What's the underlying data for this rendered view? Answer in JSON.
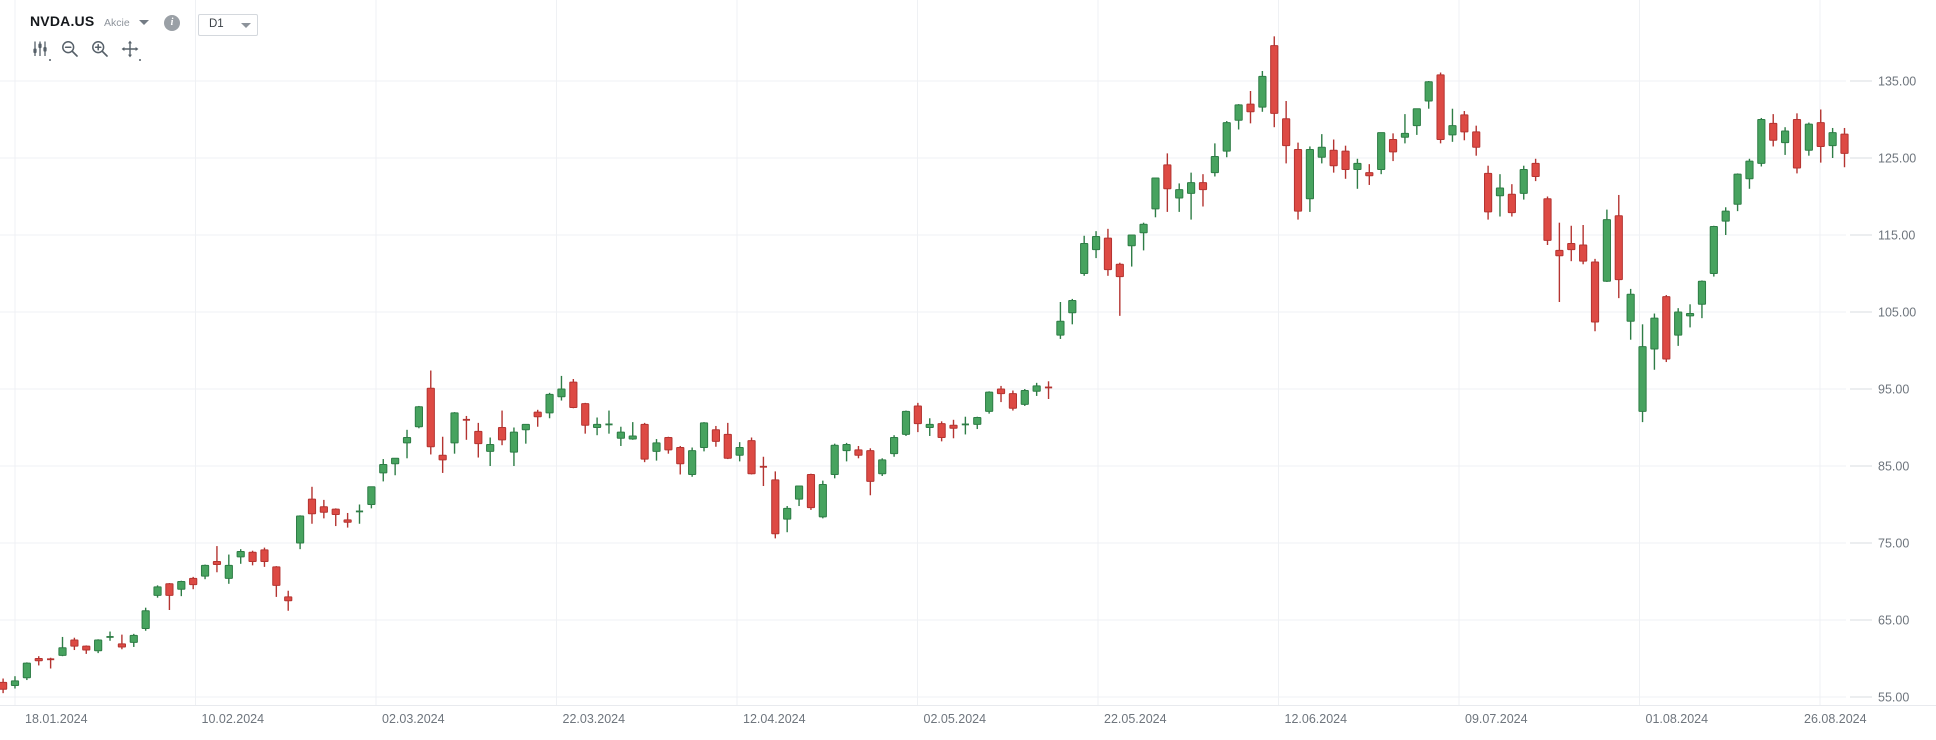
{
  "header": {
    "symbol": "NVDA.US",
    "instrument_type": "Akcie",
    "timeframe": "D1",
    "info_glyph": "i"
  },
  "toolbar": {
    "items": [
      {
        "name": "indicators"
      },
      {
        "name": "zoom-out"
      },
      {
        "name": "zoom-in"
      },
      {
        "name": "pan"
      }
    ]
  },
  "chart_data": {
    "type": "candlestick",
    "title": "NVDA.US daily candlestick chart",
    "timeframe": "D1",
    "ylim": [
      55,
      145.5
    ],
    "grid": true,
    "y_axis": {
      "ticks": [
        55,
        65,
        75,
        85,
        95,
        105,
        115,
        125,
        135
      ],
      "tick_labels": [
        "55.00",
        "65.00",
        "75.00",
        "85.00",
        "95.00",
        "105.00",
        "115.00",
        "125.00",
        "135.00"
      ]
    },
    "x_axis": {
      "labels": [
        "18.01.2024",
        "10.02.2024",
        "02.03.2024",
        "22.03.2024",
        "12.04.2024",
        "02.05.2024",
        "22.05.2024",
        "12.06.2024",
        "09.07.2024",
        "01.08.2024",
        "26.08.2024"
      ]
    },
    "colors": {
      "up": "#47a35f",
      "up_border": "#2e7d46",
      "down": "#dd4a44",
      "down_border": "#b43431",
      "grid": "#eff1f4",
      "axis_line": "#e8eaee",
      "axis_text": "#6e757d"
    },
    "candles": [
      [
        "17.01",
        56.9,
        57.4,
        55.5,
        56.0
      ],
      [
        "18.01",
        56.5,
        57.7,
        56.1,
        57.1
      ],
      [
        "19.01",
        57.5,
        59.5,
        57.2,
        59.4
      ],
      [
        "22.01",
        60.0,
        60.3,
        59.1,
        59.7
      ],
      [
        "23.01",
        59.9,
        60.1,
        58.7,
        59.8
      ],
      [
        "24.01",
        60.4,
        62.8,
        60.3,
        61.4
      ],
      [
        "25.01",
        62.4,
        62.7,
        61.1,
        61.6
      ],
      [
        "26.01",
        61.6,
        61.7,
        60.6,
        61.1
      ],
      [
        "29.01",
        61.0,
        62.5,
        60.7,
        62.4
      ],
      [
        "30.01",
        62.8,
        63.5,
        62.3,
        62.8
      ],
      [
        "31.01",
        61.9,
        63.1,
        61.2,
        61.5
      ],
      [
        "01.02",
        62.1,
        63.2,
        61.5,
        63.0
      ],
      [
        "02.02",
        63.9,
        66.6,
        63.6,
        66.2
      ],
      [
        "05.02",
        68.2,
        69.5,
        67.9,
        69.3
      ],
      [
        "06.02",
        69.7,
        69.8,
        66.3,
        68.2
      ],
      [
        "07.02",
        69.0,
        70.1,
        68.1,
        70.0
      ],
      [
        "08.02",
        70.4,
        70.6,
        69.0,
        69.6
      ],
      [
        "09.02",
        70.7,
        72.2,
        70.3,
        72.1
      ],
      [
        "12.02",
        72.6,
        74.6,
        71.2,
        72.2
      ],
      [
        "13.02",
        70.4,
        73.5,
        69.7,
        72.1
      ],
      [
        "14.02",
        73.2,
        74.2,
        72.3,
        73.9
      ],
      [
        "15.02",
        73.8,
        74.0,
        72.1,
        72.6
      ],
      [
        "16.02",
        74.1,
        74.4,
        71.9,
        72.6
      ],
      [
        "20.02",
        71.9,
        72.0,
        68.0,
        69.5
      ],
      [
        "21.02",
        68.0,
        68.8,
        66.2,
        67.5
      ],
      [
        "22.02",
        75.0,
        78.6,
        74.2,
        78.5
      ],
      [
        "23.02",
        80.7,
        82.3,
        77.5,
        78.8
      ],
      [
        "26.02",
        79.7,
        80.6,
        78.2,
        79.0
      ],
      [
        "27.02",
        79.4,
        79.5,
        77.2,
        78.7
      ],
      [
        "28.02",
        78.0,
        78.9,
        77.0,
        77.7
      ],
      [
        "29.02",
        79.0,
        80.0,
        77.5,
        79.1
      ],
      [
        "01.03",
        80.0,
        82.3,
        79.5,
        82.3
      ],
      [
        "04.03",
        84.1,
        85.9,
        83.0,
        85.2
      ],
      [
        "05.03",
        85.3,
        86.0,
        83.8,
        86.0
      ],
      [
        "06.03",
        88.0,
        89.7,
        86.0,
        88.7
      ],
      [
        "07.03",
        90.1,
        92.8,
        89.9,
        92.7
      ],
      [
        "08.03",
        95.1,
        97.4,
        86.5,
        87.5
      ],
      [
        "11.03",
        86.4,
        88.8,
        84.1,
        85.8
      ],
      [
        "12.03",
        88.0,
        92.0,
        86.6,
        91.9
      ],
      [
        "13.03",
        91.0,
        91.5,
        88.4,
        90.9
      ],
      [
        "14.03",
        89.5,
        90.6,
        86.1,
        87.9
      ],
      [
        "15.03",
        86.9,
        88.7,
        85.0,
        87.8
      ],
      [
        "18.03",
        90.0,
        92.2,
        87.7,
        88.4
      ],
      [
        "19.03",
        86.8,
        90.0,
        85.0,
        89.4
      ],
      [
        "20.03",
        89.7,
        90.4,
        87.9,
        90.4
      ],
      [
        "21.03",
        92.0,
        92.3,
        90.1,
        91.4
      ],
      [
        "22.03",
        91.9,
        94.5,
        91.2,
        94.3
      ],
      [
        "25.03",
        94.0,
        96.7,
        93.5,
        95.0
      ],
      [
        "26.03",
        95.9,
        96.3,
        92.5,
        92.6
      ],
      [
        "27.03",
        93.1,
        93.2,
        89.2,
        90.3
      ],
      [
        "28.03",
        90.0,
        91.3,
        89.0,
        90.4
      ],
      [
        "01.04",
        90.3,
        92.2,
        89.2,
        90.4
      ],
      [
        "02.04",
        88.6,
        90.1,
        87.6,
        89.4
      ],
      [
        "03.04",
        88.5,
        90.7,
        88.4,
        88.9
      ],
      [
        "04.04",
        90.4,
        90.6,
        85.5,
        85.9
      ],
      [
        "05.04",
        86.9,
        88.5,
        85.7,
        88.0
      ],
      [
        "08.04",
        88.7,
        88.8,
        86.6,
        87.1
      ],
      [
        "09.04",
        87.4,
        87.6,
        83.9,
        85.3
      ],
      [
        "10.04",
        83.9,
        87.4,
        83.6,
        87.0
      ],
      [
        "11.04",
        87.4,
        90.7,
        86.9,
        90.6
      ],
      [
        "12.04",
        89.7,
        90.2,
        87.5,
        88.2
      ],
      [
        "15.04",
        89.1,
        90.6,
        85.9,
        86.0
      ],
      [
        "16.04",
        86.4,
        88.1,
        85.6,
        87.4
      ],
      [
        "17.04",
        88.3,
        88.7,
        83.9,
        84.0
      ],
      [
        "18.04",
        84.9,
        86.2,
        82.4,
        84.7
      ],
      [
        "19.04",
        83.2,
        84.3,
        75.6,
        76.2
      ],
      [
        "22.04",
        78.1,
        79.8,
        76.4,
        79.5
      ],
      [
        "23.04",
        80.7,
        82.4,
        79.8,
        82.4
      ],
      [
        "24.04",
        83.9,
        84.0,
        79.3,
        79.6
      ],
      [
        "25.04",
        78.4,
        83.1,
        78.2,
        82.6
      ],
      [
        "26.04",
        83.9,
        87.9,
        83.4,
        87.7
      ],
      [
        "29.04",
        87.0,
        88.0,
        85.6,
        87.8
      ],
      [
        "30.04",
        87.1,
        87.6,
        86.0,
        86.4
      ],
      [
        "01.05",
        87.0,
        87.3,
        81.2,
        83.0
      ],
      [
        "02.05",
        84.0,
        86.0,
        83.7,
        85.8
      ],
      [
        "03.05",
        86.6,
        89.0,
        86.2,
        88.7
      ],
      [
        "06.05",
        89.1,
        92.2,
        88.9,
        92.1
      ],
      [
        "07.05",
        92.8,
        93.2,
        89.4,
        90.5
      ],
      [
        "08.05",
        90.0,
        91.2,
        88.9,
        90.4
      ],
      [
        "09.05",
        90.5,
        90.8,
        88.2,
        88.7
      ],
      [
        "10.05",
        90.3,
        91.0,
        88.6,
        89.9
      ],
      [
        "13.05",
        90.2,
        91.4,
        89.1,
        90.4
      ],
      [
        "14.05",
        90.4,
        91.4,
        89.8,
        91.3
      ],
      [
        "15.05",
        92.1,
        94.7,
        91.8,
        94.6
      ],
      [
        "16.05",
        95.0,
        95.4,
        93.3,
        94.4
      ],
      [
        "17.05",
        94.4,
        94.8,
        92.2,
        92.5
      ],
      [
        "20.05",
        93.0,
        95.0,
        92.8,
        94.8
      ],
      [
        "21.05",
        94.7,
        95.8,
        94.1,
        95.4
      ],
      [
        "22.05",
        95.2,
        96.0,
        93.7,
        95.0
      ],
      [
        "23.05",
        102.0,
        106.3,
        101.5,
        103.8
      ],
      [
        "24.05",
        104.9,
        106.7,
        103.4,
        106.5
      ],
      [
        "28.05",
        110.0,
        114.9,
        109.7,
        113.9
      ],
      [
        "29.05",
        113.1,
        115.5,
        112.0,
        114.8
      ],
      [
        "30.05",
        114.6,
        115.8,
        109.7,
        110.5
      ],
      [
        "31.05",
        111.2,
        111.4,
        104.5,
        109.6
      ],
      [
        "03.06",
        113.6,
        115.0,
        110.9,
        115.0
      ],
      [
        "04.06",
        115.3,
        116.6,
        113.0,
        116.4
      ],
      [
        "05.06",
        118.4,
        122.4,
        117.3,
        122.4
      ],
      [
        "06.06",
        124.1,
        125.6,
        118.0,
        121.0
      ],
      [
        "07.06",
        119.8,
        121.7,
        118.0,
        120.9
      ],
      [
        "10.06",
        120.4,
        123.1,
        117.0,
        121.8
      ],
      [
        "11.06",
        121.8,
        122.9,
        118.7,
        120.9
      ],
      [
        "12.06",
        123.1,
        126.9,
        122.6,
        125.2
      ],
      [
        "13.06",
        125.9,
        129.8,
        125.1,
        129.6
      ],
      [
        "14.06",
        129.9,
        132.0,
        128.7,
        131.9
      ],
      [
        "17.06",
        132.0,
        133.7,
        129.5,
        131.0
      ],
      [
        "18.06",
        131.6,
        136.3,
        131.0,
        135.6
      ],
      [
        "20.06",
        139.6,
        140.8,
        129.0,
        130.8
      ],
      [
        "21.06",
        130.1,
        132.4,
        124.3,
        126.6
      ],
      [
        "24.06",
        126.1,
        127.0,
        117.0,
        118.1
      ],
      [
        "25.06",
        119.7,
        126.5,
        118.0,
        126.1
      ],
      [
        "26.06",
        125.1,
        128.1,
        124.3,
        126.4
      ],
      [
        "27.06",
        126.0,
        127.4,
        123.1,
        124.0
      ],
      [
        "28.06",
        125.9,
        126.6,
        122.3,
        123.5
      ],
      [
        "01.07",
        123.5,
        124.9,
        121.0,
        124.3
      ],
      [
        "02.07",
        123.1,
        124.2,
        121.5,
        122.7
      ],
      [
        "03.07",
        123.5,
        128.3,
        122.9,
        128.3
      ],
      [
        "05.07",
        127.4,
        128.2,
        124.6,
        125.8
      ],
      [
        "08.07",
        127.7,
        130.7,
        126.9,
        128.2
      ],
      [
        "09.07",
        129.2,
        131.4,
        128.0,
        131.4
      ],
      [
        "10.07",
        132.4,
        135.0,
        131.4,
        134.9
      ],
      [
        "11.07",
        135.8,
        136.1,
        126.9,
        127.4
      ],
      [
        "12.07",
        128.0,
        131.4,
        127.1,
        129.2
      ],
      [
        "15.07",
        130.6,
        131.1,
        127.3,
        128.4
      ],
      [
        "16.07",
        128.4,
        129.2,
        125.3,
        126.4
      ],
      [
        "17.07",
        123.0,
        124.0,
        117.0,
        118.0
      ],
      [
        "18.07",
        120.1,
        122.9,
        117.4,
        121.1
      ],
      [
        "19.07",
        120.3,
        121.6,
        117.4,
        117.9
      ],
      [
        "22.07",
        120.4,
        124.0,
        119.6,
        123.5
      ],
      [
        "23.07",
        124.3,
        124.9,
        122.0,
        122.6
      ],
      [
        "24.07",
        119.7,
        120.0,
        113.7,
        114.3
      ],
      [
        "25.07",
        113.0,
        116.6,
        106.3,
        112.3
      ],
      [
        "26.07",
        113.9,
        116.2,
        111.6,
        113.1
      ],
      [
        "29.07",
        113.7,
        116.3,
        111.2,
        111.6
      ],
      [
        "30.07",
        111.5,
        111.9,
        102.5,
        103.7
      ],
      [
        "31.07",
        109.0,
        118.3,
        108.9,
        117.0
      ],
      [
        "01.08",
        117.5,
        120.2,
        106.8,
        109.2
      ],
      [
        "02.08",
        103.8,
        108.0,
        101.4,
        107.3
      ],
      [
        "05.08",
        92.1,
        103.4,
        90.7,
        100.5
      ],
      [
        "06.08",
        100.2,
        104.8,
        97.5,
        104.2
      ],
      [
        "07.08",
        107.0,
        107.2,
        98.5,
        98.9
      ],
      [
        "08.08",
        102.0,
        105.5,
        100.6,
        105.0
      ],
      [
        "09.08",
        104.5,
        106.0,
        103.0,
        104.8
      ],
      [
        "12.08",
        106.0,
        109.1,
        104.2,
        109.0
      ],
      [
        "13.08",
        110.0,
        116.2,
        109.6,
        116.1
      ],
      [
        "14.08",
        116.8,
        118.6,
        115.0,
        118.1
      ],
      [
        "15.08",
        119.0,
        123.0,
        118.1,
        122.9
      ],
      [
        "16.08",
        122.3,
        124.9,
        121.0,
        124.6
      ],
      [
        "19.08",
        124.3,
        130.2,
        123.9,
        130.0
      ],
      [
        "20.08",
        129.5,
        130.7,
        126.5,
        127.3
      ],
      [
        "21.08",
        127.0,
        129.0,
        125.4,
        128.5
      ],
      [
        "22.08",
        130.0,
        130.8,
        123.0,
        123.7
      ],
      [
        "23.08",
        126.0,
        129.6,
        125.3,
        129.4
      ],
      [
        "26.08",
        129.6,
        131.3,
        124.4,
        126.5
      ],
      [
        "27.08",
        126.6,
        128.9,
        125.0,
        128.3
      ],
      [
        "28.08",
        128.1,
        128.9,
        123.8,
        125.6
      ]
    ]
  }
}
